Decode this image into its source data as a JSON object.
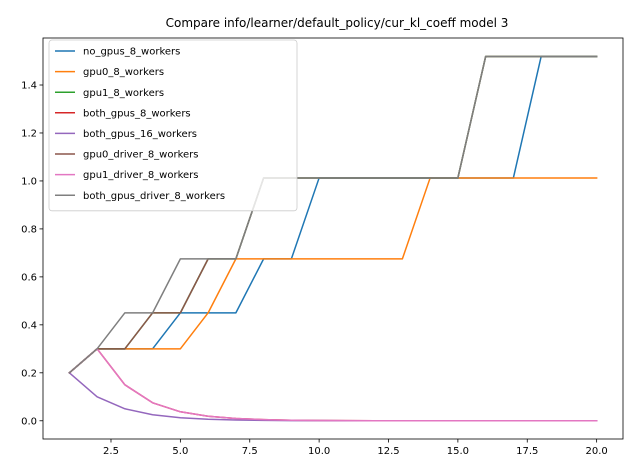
{
  "chart_data": {
    "type": "line",
    "title": "Compare info/learner/default_policy/cur_kl_coeff model 3",
    "xlabel": "",
    "ylabel": "",
    "xlim": [
      0.05,
      20.95
    ],
    "ylim": [
      -0.076,
      1.596
    ],
    "xticks": [
      2.5,
      5.0,
      7.5,
      10.0,
      12.5,
      15.0,
      17.5,
      20.0
    ],
    "xtick_labels": [
      "2.5",
      "5.0",
      "7.5",
      "10.0",
      "12.5",
      "15.0",
      "17.5",
      "20.0"
    ],
    "yticks": [
      0.0,
      0.2,
      0.4,
      0.6,
      0.8,
      1.0,
      1.2,
      1.4
    ],
    "ytick_labels": [
      "0.0",
      "0.2",
      "0.4",
      "0.6",
      "0.8",
      "1.0",
      "1.2",
      "1.4"
    ],
    "grid": false,
    "legend_position": "top-left",
    "x": [
      1,
      2,
      3,
      4,
      5,
      6,
      7,
      8,
      9,
      10,
      11,
      12,
      13,
      14,
      15,
      16,
      17,
      18,
      19,
      20
    ],
    "series": [
      {
        "name": "no_gpus_8_workers",
        "color": "#1f77b4",
        "values": [
          0.2,
          0.3,
          0.3,
          0.3,
          0.45,
          0.45,
          0.45,
          0.675,
          0.675,
          1.0125,
          1.0125,
          1.0125,
          1.0125,
          1.0125,
          1.0125,
          1.0125,
          1.0125,
          1.51875,
          1.51875,
          1.51875
        ]
      },
      {
        "name": "gpu0_8_workers",
        "color": "#ff7f0e",
        "values": [
          0.2,
          0.3,
          0.3,
          0.3,
          0.3,
          0.45,
          0.675,
          0.675,
          0.675,
          0.675,
          0.675,
          0.675,
          0.675,
          1.0125,
          1.0125,
          1.0125,
          1.0125,
          1.0125,
          1.0125,
          1.0125
        ]
      },
      {
        "name": "gpu1_8_workers",
        "color": "#2ca02c",
        "values": [
          0.2,
          0.3,
          0.3,
          0.45,
          0.45,
          0.675,
          0.675,
          1.0125,
          1.0125,
          1.0125,
          1.0125,
          1.0125,
          1.0125,
          1.0125,
          1.0125,
          1.51875,
          1.51875,
          1.51875,
          1.51875,
          1.51875
        ]
      },
      {
        "name": "both_gpus_8_workers",
        "color": "#d62728",
        "values": [
          0.2,
          0.3,
          0.15,
          0.075,
          0.0375,
          0.01875,
          0.009375,
          0.0046875,
          0.00234375,
          0.001171875,
          0.0005859375,
          0.0003,
          0.00015,
          0.0001,
          0.0,
          0.0,
          0.0,
          0.0,
          0.0,
          0.0
        ]
      },
      {
        "name": "both_gpus_16_workers",
        "color": "#9467bd",
        "values": [
          0.2,
          0.1,
          0.05,
          0.025,
          0.0125,
          0.00625,
          0.003125,
          0.0015625,
          0.00078125,
          0.000390625,
          0.0002,
          0.0001,
          0.0,
          0.0,
          0.0,
          0.0,
          0.0,
          0.0,
          0.0,
          0.0
        ]
      },
      {
        "name": "gpu0_driver_8_workers",
        "color": "#8c564b",
        "values": [
          0.2,
          0.3,
          0.3,
          0.45,
          0.45,
          0.675,
          0.675,
          1.0125,
          1.0125,
          1.0125,
          1.0125,
          1.0125,
          1.0125,
          1.0125,
          1.0125,
          1.51875,
          1.51875,
          1.51875,
          1.51875,
          1.51875
        ]
      },
      {
        "name": "gpu1_driver_8_workers",
        "color": "#e377c2",
        "values": [
          0.2,
          0.3,
          0.15,
          0.075,
          0.0375,
          0.01875,
          0.009375,
          0.0046875,
          0.00234375,
          0.001171875,
          0.0005859375,
          0.0003,
          0.00015,
          0.0001,
          0.0,
          0.0,
          0.0,
          0.0,
          0.0,
          0.0
        ]
      },
      {
        "name": "both_gpus_driver_8_workers",
        "color": "#7f7f7f",
        "values": [
          0.2,
          0.3,
          0.45,
          0.45,
          0.675,
          0.675,
          0.675,
          1.0125,
          1.0125,
          1.0125,
          1.0125,
          1.0125,
          1.0125,
          1.0125,
          1.0125,
          1.51875,
          1.51875,
          1.51875,
          1.51875,
          1.51875
        ]
      }
    ]
  }
}
